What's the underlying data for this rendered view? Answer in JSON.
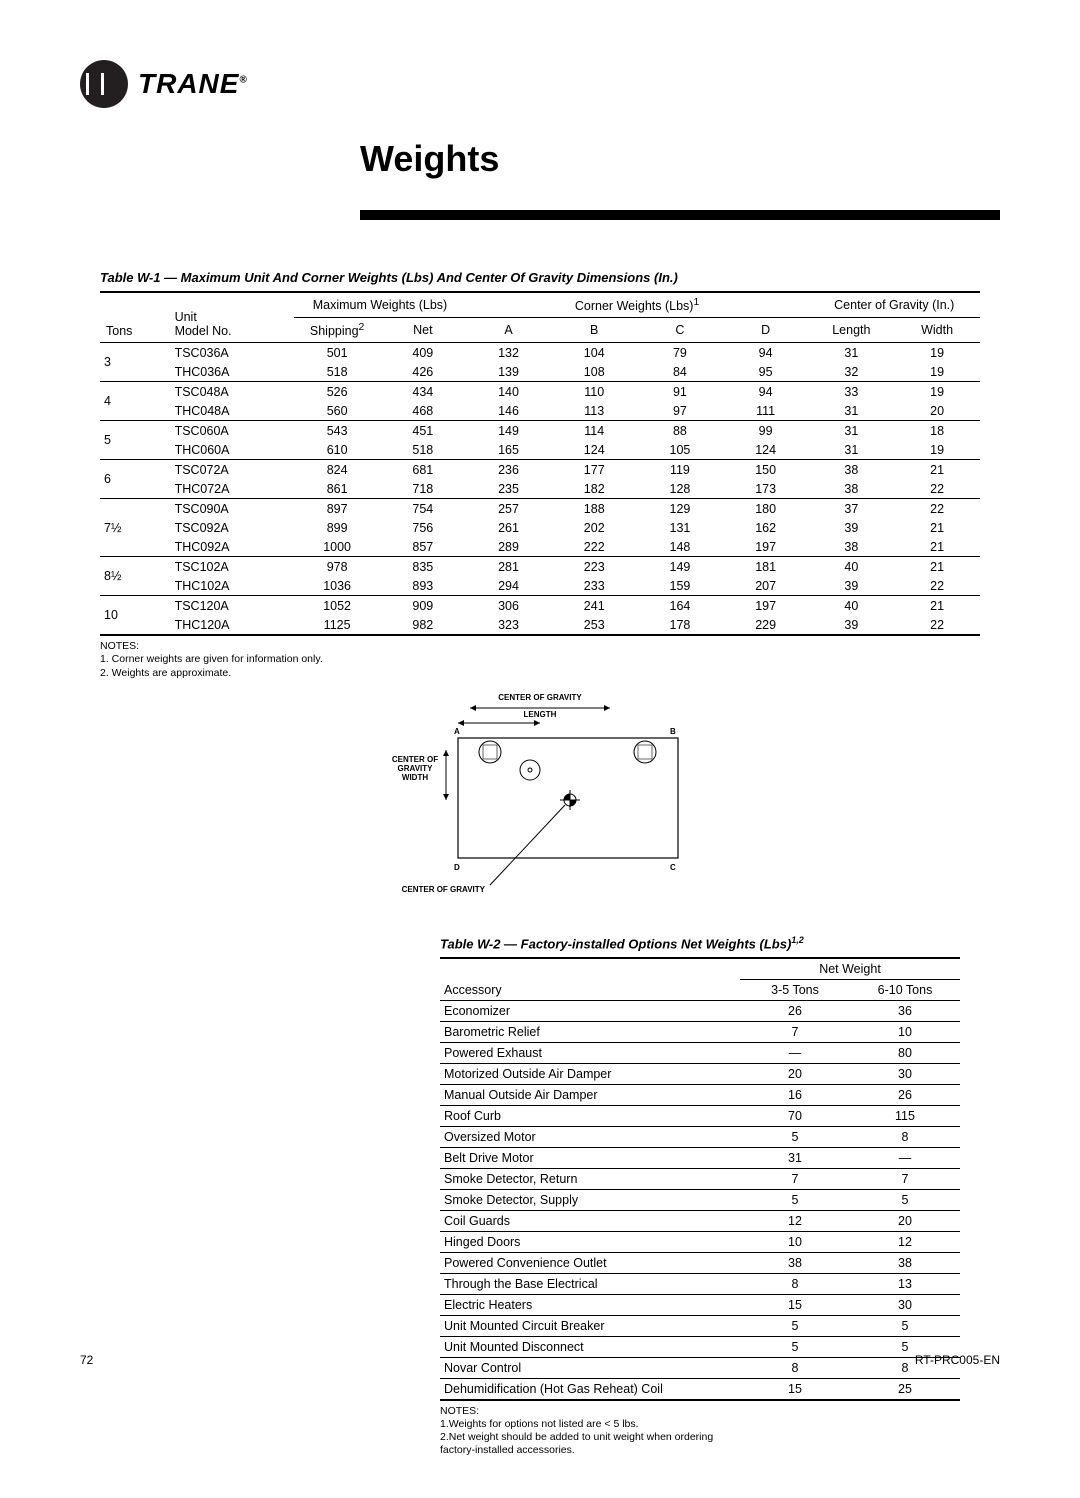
{
  "brand": "TRANE",
  "page_title": "Weights",
  "page_number": "72",
  "doc_ref": "RT-PRC005-EN",
  "table1": {
    "caption": "Table W-1 — Maximum Unit And Corner Weights (Lbs) And Center Of Gravity Dimensions (In.)",
    "header_group_max": "Maximum Weights (Lbs)",
    "header_group_corner": "Corner Weights (Lbs)",
    "header_group_corner_sup": "1",
    "header_group_cog": "Center of Gravity (In.)",
    "col_tons": "Tons",
    "col_unit": "Unit",
    "col_model": "Model No.",
    "col_shipping": "Shipping",
    "col_shipping_sup": "2",
    "col_net": "Net",
    "col_a": "A",
    "col_b": "B",
    "col_c": "C",
    "col_d": "D",
    "col_len": "Length",
    "col_wid": "Width",
    "groups": [
      {
        "tons": "3",
        "rows": [
          {
            "model": "TSC036A",
            "ship": "501",
            "net": "409",
            "a": "132",
            "b": "104",
            "c": "79",
            "d": "94",
            "len": "31",
            "wid": "19"
          },
          {
            "model": "THC036A",
            "ship": "518",
            "net": "426",
            "a": "139",
            "b": "108",
            "c": "84",
            "d": "95",
            "len": "32",
            "wid": "19"
          }
        ]
      },
      {
        "tons": "4",
        "rows": [
          {
            "model": "TSC048A",
            "ship": "526",
            "net": "434",
            "a": "140",
            "b": "110",
            "c": "91",
            "d": "94",
            "len": "33",
            "wid": "19"
          },
          {
            "model": "THC048A",
            "ship": "560",
            "net": "468",
            "a": "146",
            "b": "113",
            "c": "97",
            "d": "111",
            "len": "31",
            "wid": "20"
          }
        ]
      },
      {
        "tons": "5",
        "rows": [
          {
            "model": "TSC060A",
            "ship": "543",
            "net": "451",
            "a": "149",
            "b": "114",
            "c": "88",
            "d": "99",
            "len": "31",
            "wid": "18"
          },
          {
            "model": "THC060A",
            "ship": "610",
            "net": "518",
            "a": "165",
            "b": "124",
            "c": "105",
            "d": "124",
            "len": "31",
            "wid": "19"
          }
        ]
      },
      {
        "tons": "6",
        "rows": [
          {
            "model": "TSC072A",
            "ship": "824",
            "net": "681",
            "a": "236",
            "b": "177",
            "c": "119",
            "d": "150",
            "len": "38",
            "wid": "21"
          },
          {
            "model": "THC072A",
            "ship": "861",
            "net": "718",
            "a": "235",
            "b": "182",
            "c": "128",
            "d": "173",
            "len": "38",
            "wid": "22"
          }
        ]
      },
      {
        "tons": "7½",
        "rows": [
          {
            "model": "TSC090A",
            "ship": "897",
            "net": "754",
            "a": "257",
            "b": "188",
            "c": "129",
            "d": "180",
            "len": "37",
            "wid": "22"
          },
          {
            "model": "TSC092A",
            "ship": "899",
            "net": "756",
            "a": "261",
            "b": "202",
            "c": "131",
            "d": "162",
            "len": "39",
            "wid": "21"
          },
          {
            "model": "THC092A",
            "ship": "1000",
            "net": "857",
            "a": "289",
            "b": "222",
            "c": "148",
            "d": "197",
            "len": "38",
            "wid": "21"
          }
        ]
      },
      {
        "tons": "8½",
        "rows": [
          {
            "model": "TSC102A",
            "ship": "978",
            "net": "835",
            "a": "281",
            "b": "223",
            "c": "149",
            "d": "181",
            "len": "40",
            "wid": "21"
          },
          {
            "model": "THC102A",
            "ship": "1036",
            "net": "893",
            "a": "294",
            "b": "233",
            "c": "159",
            "d": "207",
            "len": "39",
            "wid": "22"
          }
        ]
      },
      {
        "tons": "10",
        "rows": [
          {
            "model": "TSC120A",
            "ship": "1052",
            "net": "909",
            "a": "306",
            "b": "241",
            "c": "164",
            "d": "197",
            "len": "40",
            "wid": "21"
          },
          {
            "model": "THC120A",
            "ship": "1125",
            "net": "982",
            "a": "323",
            "b": "253",
            "c": "178",
            "d": "229",
            "len": "39",
            "wid": "22"
          }
        ]
      }
    ],
    "notes_label": "NOTES:",
    "note1": "1.  Corner weights are given for information only.",
    "note2": "2.  Weights are approximate."
  },
  "diagram": {
    "cog_length": "CENTER OF GRAVITY",
    "length": "LENGTH",
    "cog_width_1": "CENTER OF",
    "cog_width_2": "GRAVITY",
    "cog_width_3": "WIDTH",
    "A": "A",
    "B": "B",
    "C": "C",
    "D": "D",
    "bottom": "CENTER OF GRAVITY"
  },
  "table2": {
    "caption": "Table W-2  — Factory-installed Options Net Weights (Lbs)",
    "caption_sup": "1,2",
    "header_netweight": "Net Weight",
    "col_acc": "Accessory",
    "col_35": "3-5 Tons",
    "col_610": "6-10 Tons",
    "rows": [
      {
        "acc": "Economizer",
        "a": "26",
        "b": "36"
      },
      {
        "acc": "Barometric Relief",
        "a": "7",
        "b": "10"
      },
      {
        "acc": "Powered Exhaust",
        "a": "—",
        "b": "80"
      },
      {
        "acc": "Motorized Outside Air Damper",
        "a": "20",
        "b": "30"
      },
      {
        "acc": "Manual Outside Air Damper",
        "a": "16",
        "b": "26"
      },
      {
        "acc": "Roof Curb",
        "a": "70",
        "b": "115"
      },
      {
        "acc": "Oversized Motor",
        "a": "5",
        "b": "8"
      },
      {
        "acc": "Belt Drive Motor",
        "a": "31",
        "b": "—"
      },
      {
        "acc": "Smoke Detector, Return",
        "a": "7",
        "b": "7"
      },
      {
        "acc": "Smoke Detector, Supply",
        "a": "5",
        "b": "5"
      },
      {
        "acc": "Coil Guards",
        "a": "12",
        "b": "20"
      },
      {
        "acc": "Hinged Doors",
        "a": "10",
        "b": "12"
      },
      {
        "acc": "Powered Convenience Outlet",
        "a": "38",
        "b": "38"
      },
      {
        "acc": "Through the Base Electrical",
        "a": "8",
        "b": "13"
      },
      {
        "acc": "Electric Heaters",
        "a": "15",
        "b": "30"
      },
      {
        "acc": "Unit Mounted Circuit Breaker",
        "a": "5",
        "b": "5"
      },
      {
        "acc": "Unit Mounted Disconnect",
        "a": "5",
        "b": "5"
      },
      {
        "acc": "Novar Control",
        "a": "8",
        "b": "8"
      },
      {
        "acc": "Dehumidification (Hot Gas Reheat) Coil",
        "a": "15",
        "b": "25"
      }
    ],
    "notes_label": "NOTES:",
    "note1": "1.Weights for options not listed are < 5 lbs.",
    "note2": "2.Net weight should be added to unit weight when ordering",
    "note2b": "   factory-installed accessories."
  }
}
